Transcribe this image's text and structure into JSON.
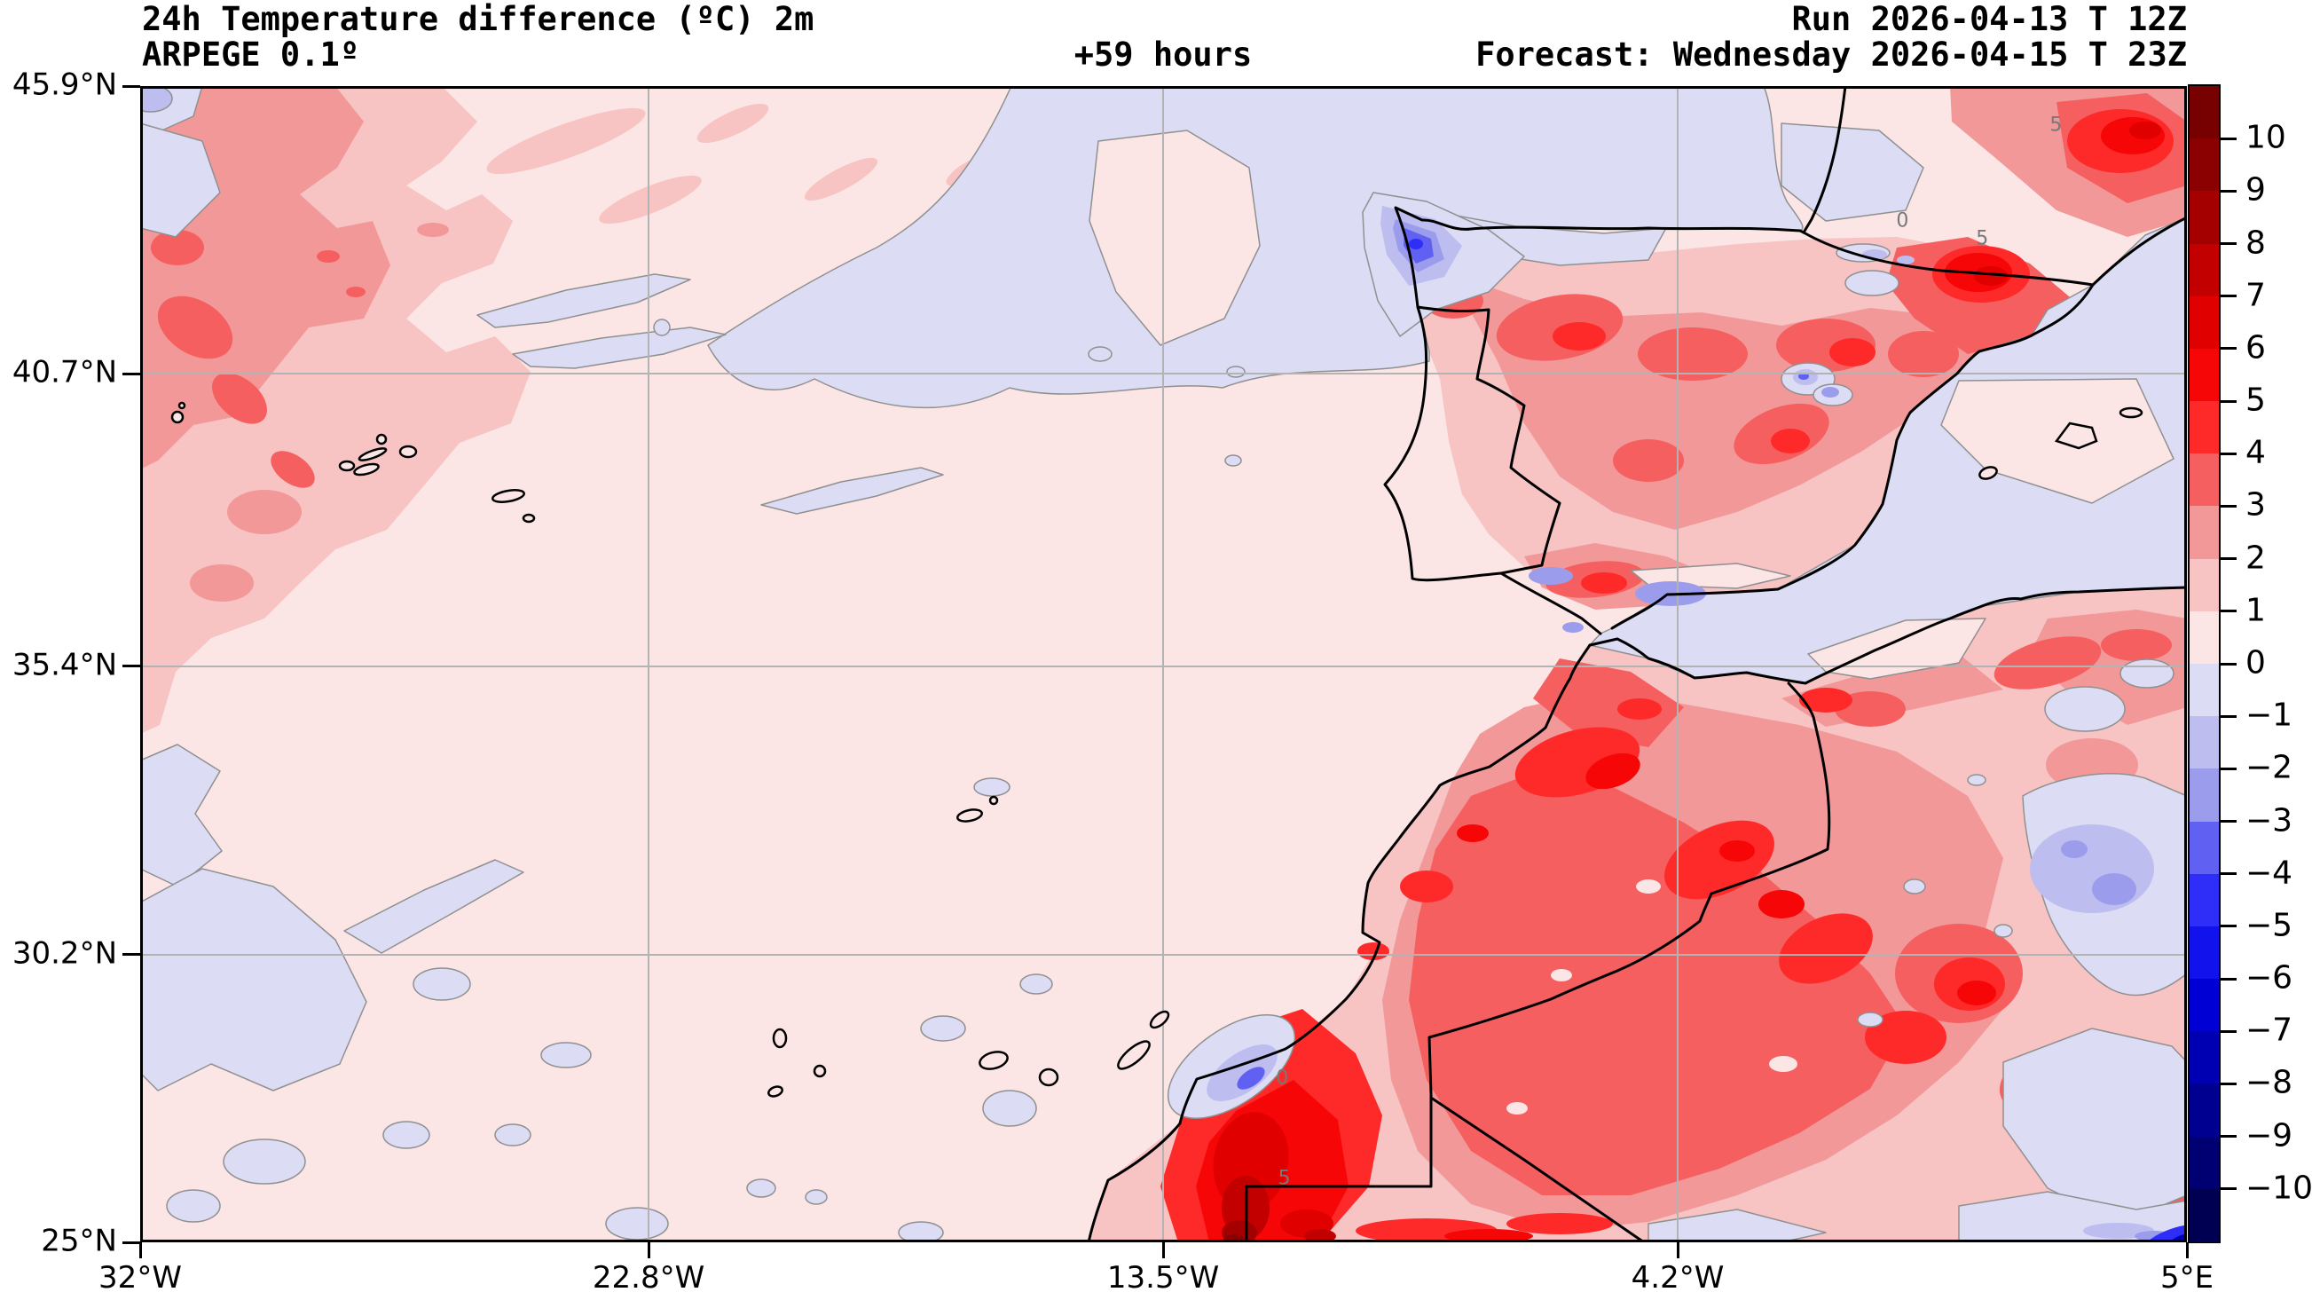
{
  "header": {
    "title": "24h Temperature difference (ºC) 2m",
    "model": "ARPEGE 0.1º",
    "lead_time": "+59 hours",
    "run": "Run 2026-04-13 T 12Z",
    "forecast": "Forecast: Wednesday 2026-04-15 T 23Z"
  },
  "axes": {
    "lat_ticks": [
      {
        "label": "45.9°N",
        "f": 0.0
      },
      {
        "label": "40.7°N",
        "f": 0.2487
      },
      {
        "label": "35.4°N",
        "f": 0.5019
      },
      {
        "label": "30.2°N",
        "f": 0.7513
      },
      {
        "label": "25°N",
        "f": 1.0
      }
    ],
    "lon_ticks": [
      {
        "label": "32°W",
        "f": 0.0
      },
      {
        "label": "22.8°W",
        "f": 0.2484
      },
      {
        "label": "13.5°W",
        "f": 0.4998
      },
      {
        "label": "4.2°W",
        "f": 0.7512
      },
      {
        "label": "5°E",
        "f": 1.0
      }
    ]
  },
  "colorbar": {
    "tick_labels": [
      "10",
      "9",
      "8",
      "7",
      "6",
      "5",
      "4",
      "3",
      "2",
      "1",
      "0",
      "−1",
      "−2",
      "−3",
      "−4",
      "−5",
      "−6",
      "−7",
      "−8",
      "−9",
      "−10"
    ],
    "segments_top_to_bottom": [
      {
        "range": "> 10",
        "color": "#770000"
      },
      {
        "range": "9 … 10",
        "color": "#8b0000"
      },
      {
        "range": "8 … 9",
        "color": "#a50000"
      },
      {
        "range": "7 … 8",
        "color": "#c30000"
      },
      {
        "range": "6 … 7",
        "color": "#e00000"
      },
      {
        "range": "5 … 6",
        "color": "#f60606"
      },
      {
        "range": "4 … 5",
        "color": "#fe2a2a"
      },
      {
        "range": "3 … 4",
        "color": "#f55f5f"
      },
      {
        "range": "2 … 3",
        "color": "#f29898"
      },
      {
        "range": "1 … 2",
        "color": "#f7c3c3"
      },
      {
        "range": "0 … 1",
        "color": "#fbe5e5"
      },
      {
        "range": "−1 … 0",
        "color": "#dcdcf5"
      },
      {
        "range": "−2 … −1",
        "color": "#bdbdf0"
      },
      {
        "range": "−3 … −2",
        "color": "#9c9cec"
      },
      {
        "range": "−4 … −3",
        "color": "#6060f2"
      },
      {
        "range": "−5 … −4",
        "color": "#2e2ef8"
      },
      {
        "range": "−6 … −5",
        "color": "#1212ec"
      },
      {
        "range": "−7 … −6",
        "color": "#0000d4"
      },
      {
        "range": "−8 … −7",
        "color": "#0000b2"
      },
      {
        "range": "−9 … −8",
        "color": "#000090"
      },
      {
        "range": "−10 … −9",
        "color": "#000072"
      },
      {
        "range": "< −10",
        "color": "#000052"
      }
    ]
  },
  "contour_labels": [
    {
      "text": "5",
      "fx": 0.936,
      "fy": 0.034
    },
    {
      "text": "0",
      "fx": 0.861,
      "fy": 0.117
    },
    {
      "text": "5",
      "fx": 0.9,
      "fy": 0.132
    },
    {
      "text": "0",
      "fx": 0.558,
      "fy": 0.858
    },
    {
      "text": "5",
      "fx": 0.559,
      "fy": 0.945
    }
  ],
  "chart_data": {
    "type": "filled-contour-map",
    "variable": "24h Temperature difference at 2m",
    "units": "ºC",
    "model": "ARPEGE 0.1º",
    "run": "2026-04-13 12Z",
    "forecast_valid": "Wednesday 2026-04-15 23Z",
    "lead_hours": 59,
    "map_extent": {
      "lon_min_deg_east": -32,
      "lon_max_deg_east": 5,
      "lat_min_deg_north": 25,
      "lat_max_deg_north": 45.9
    },
    "contour_levels_c": [
      -10,
      -9,
      -8,
      -7,
      -6,
      -5,
      -4,
      -3,
      -2,
      -1,
      0,
      1,
      2,
      3,
      4,
      5,
      6,
      7,
      8,
      9,
      10
    ],
    "grid": true,
    "legend_position": "right",
    "depicted_features": [
      "Warm anomaly +2 to +8 over NE Spain, Pyrenees and SE France (local > +5)",
      "Strong warm anomaly +3 to +10 over Morocco Atlas and SW Moroccan coast",
      "Cold spot −3 to −5 over Galicia (NW Spain)",
      "Cool anomaly −1 to −3 over SE Algeria and Alboran Sea",
      "Mostly 0 to +1 over open Atlantic with patches of −1 to 0",
      "Warm band +1 to +4 in far NW corner of domain"
    ]
  }
}
